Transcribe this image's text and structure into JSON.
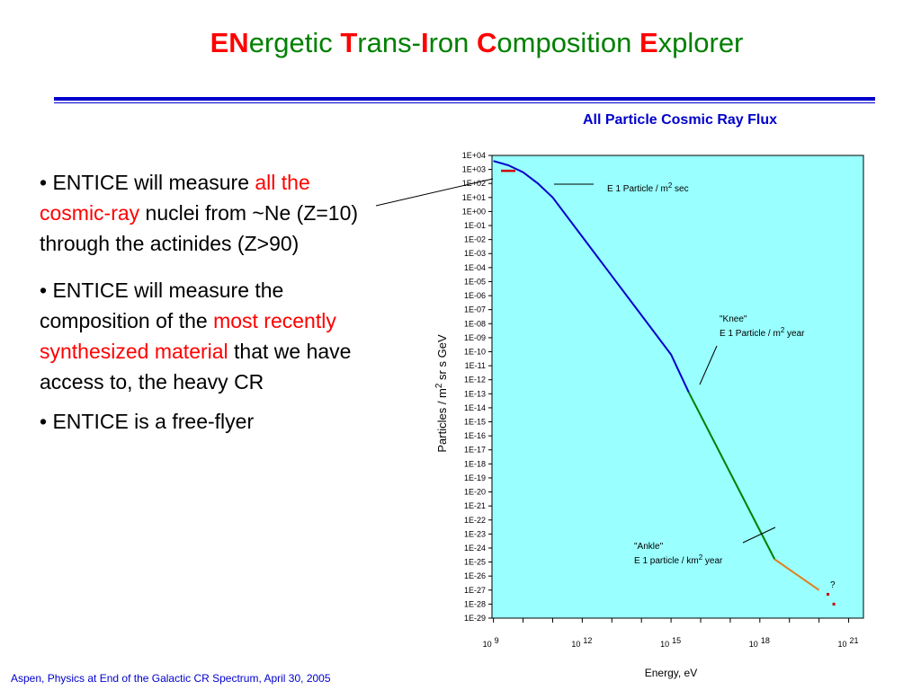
{
  "title": {
    "w1_cap": "EN",
    "w1_rest": "ergetic",
    "w2_cap": "T",
    "w2_rest": "rans-",
    "w3_cap": "I",
    "w3_rest": "ron",
    "w4_cap": "C",
    "w4_rest": "omposition",
    "w5_cap": "E",
    "w5_rest": "xplorer"
  },
  "bullets": {
    "b1": {
      "pre": "• ENTICE will measure ",
      "red": "all the cosmic-ray",
      "post": " nuclei from ~Ne (Z=10) through the actinides (Z>90)"
    },
    "b2": {
      "pre": "• ENTICE will measure the composition of the ",
      "red": "most recently synthesized material",
      "post": " that we have access to, the heavy CR"
    },
    "b3": {
      "text": "• ENTICE is a free-flyer"
    }
  },
  "footer": "Aspen, Physics at End of the Galactic CR Spectrum, April 30, 2005",
  "colors": {
    "title_cap": "#ff0000",
    "title_rest": "#008000",
    "rule": "#0000cc",
    "plot_bg": "#99ffff",
    "low": "#0000cc",
    "mid": "#008000",
    "high": "#e08020",
    "marker": "#cc0000"
  },
  "chart_data": {
    "type": "line",
    "title": "All Particle Cosmic Ray Flux",
    "xlabel": "Energy, eV",
    "ylabel": {
      "pre": "Particles / m",
      "sup": "2",
      "post": " sr s GeV"
    },
    "xscale": "log",
    "yscale": "log",
    "x_tick_labels": [
      {
        "base": "10",
        "exp": "9",
        "logx": 9
      },
      {
        "base": "10",
        "exp": "12",
        "logx": 12
      },
      {
        "base": "10",
        "exp": "15",
        "logx": 15
      },
      {
        "base": "10",
        "exp": "18",
        "logx": 18
      },
      {
        "base": "10",
        "exp": "21",
        "logx": 21
      }
    ],
    "y_tick_labels": [
      "1E+04",
      "1E+03",
      "1E+02",
      "1E+01",
      "1E+00",
      "1E-01",
      "1E-02",
      "1E-03",
      "1E-04",
      "1E-05",
      "1E-06",
      "1E-07",
      "1E-08",
      "1E-09",
      "1E-10",
      "1E-11",
      "1E-12",
      "1E-13",
      "1E-14",
      "1E-15",
      "1E-16",
      "1E-17",
      "1E-18",
      "1E-19",
      "1E-20",
      "1E-21",
      "1E-22",
      "1E-23",
      "1E-24",
      "1E-25",
      "1E-26",
      "1E-27",
      "1E-28",
      "1E-29"
    ],
    "series": [
      {
        "color_key": "low",
        "x_log": [
          9.0,
          9.5,
          10.0,
          10.5,
          11.0,
          12.0,
          13.0,
          14.0,
          15.0,
          15.6
        ],
        "y_log": [
          3.6,
          3.3,
          2.8,
          2.0,
          1.0,
          -1.8,
          -4.6,
          -7.4,
          -10.2,
          -12.9
        ]
      },
      {
        "color_key": "mid",
        "x_log": [
          15.6,
          18.5
        ],
        "y_log": [
          -12.9,
          -24.8
        ]
      },
      {
        "color_key": "high",
        "x_log": [
          18.5,
          20.0
        ],
        "y_log": [
          -24.8,
          -27.0
        ]
      }
    ],
    "markers": [
      {
        "x_log": 9.5,
        "y_log": 2.9,
        "shape": "dash"
      },
      {
        "x_log": 20.3,
        "y_log": -27.3,
        "shape": "dot"
      },
      {
        "x_log": 20.5,
        "y_log": -28.0,
        "shape": "dot"
      }
    ],
    "annotations": [
      {
        "id": "sec",
        "lines": [
          {
            "pre": "E 1 Particle / m",
            "sup": "2",
            "post": " sec"
          }
        ]
      },
      {
        "id": "knee",
        "lines": [
          {
            "pre": "\"Knee\""
          },
          {
            "pre": "E 1 Particle / m",
            "sup": "2",
            "post": " year"
          }
        ]
      },
      {
        "id": "ankle",
        "lines": [
          {
            "pre": "\"Ankle\""
          },
          {
            "pre": "E 1 particle / km",
            "sup": "2",
            "post": " year"
          }
        ]
      },
      {
        "id": "q",
        "lines": [
          {
            "pre": "?"
          }
        ]
      }
    ]
  }
}
